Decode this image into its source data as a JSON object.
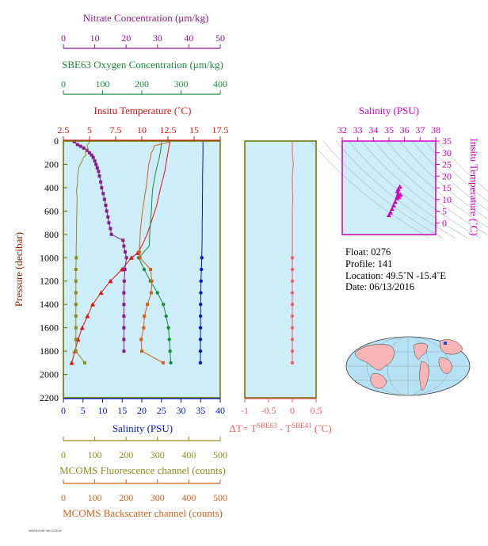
{
  "colors": {
    "panel_bg": "#cdeef8",
    "frame": "#6b6b00",
    "nitrate": "#8b1a8b",
    "oxygen": "#1a8a3a",
    "temperature": "#e01010",
    "salinity": "#0018c8",
    "fluorescence": "#8c8c1a",
    "backscatter": "#d0601a",
    "delta_t": "#f06060",
    "ts": "#d000c0"
  },
  "chart_data": [
    {
      "id": "profile",
      "type": "line",
      "ylabel": "Pressure (decibar)",
      "ylim": [
        0,
        2200
      ],
      "yticks": [
        0,
        200,
        400,
        600,
        800,
        1000,
        1200,
        1400,
        1600,
        1800,
        2000,
        2200
      ],
      "top_axes": [
        {
          "key": "nitrate",
          "title": "Nitrate Concentration (μm/kg)",
          "range": [
            0,
            50
          ],
          "ticks": [
            0,
            10,
            20,
            30,
            40,
            50
          ]
        },
        {
          "key": "oxygen",
          "title": "SBE63 Oxygen Concentration (μm/kg)",
          "range": [
            0,
            400
          ],
          "ticks": [
            0,
            100,
            200,
            300,
            400
          ]
        },
        {
          "key": "temperature",
          "title": "Insitu Temperature (˚C)",
          "range": [
            2.5,
            17.5
          ],
          "ticks": [
            2.5,
            5.0,
            7.5,
            10.0,
            12.5,
            15.0,
            17.5
          ]
        }
      ],
      "bottom_axes": [
        {
          "key": "salinity",
          "title": "Salinity (PSU)",
          "range": [
            0,
            40
          ],
          "ticks": [
            0,
            5,
            10,
            15,
            20,
            25,
            30,
            35,
            40
          ]
        },
        {
          "key": "fluorescence",
          "title": "MCOMS Fluorescence channel (counts)",
          "range": [
            0,
            500
          ],
          "ticks": [
            0,
            100,
            200,
            300,
            400,
            500
          ]
        },
        {
          "key": "backscatter",
          "title": "MCOMS Backscatter channel (counts)",
          "range": [
            0,
            500
          ],
          "ticks": [
            0,
            100,
            200,
            300,
            400,
            500
          ]
        }
      ],
      "series": [
        {
          "key": "temperature",
          "name": "Insitu Temperature",
          "marker": "triangle",
          "points": [
            [
              12.7,
              5
            ],
            [
              12.6,
              50
            ],
            [
              12.5,
              100
            ],
            [
              12.4,
              150
            ],
            [
              12.3,
              200
            ],
            [
              12.2,
              260
            ],
            [
              12.0,
              330
            ],
            [
              11.8,
              400
            ],
            [
              11.6,
              480
            ],
            [
              11.4,
              560
            ],
            [
              11.1,
              640
            ],
            [
              10.8,
              720
            ],
            [
              10.5,
              800
            ],
            [
              10.1,
              880
            ],
            [
              9.6,
              960
            ],
            [
              9.0,
              1000
            ],
            [
              8.1,
              1100
            ],
            [
              7.0,
              1200
            ],
            [
              6.1,
              1300
            ],
            [
              5.3,
              1400
            ],
            [
              4.8,
              1500
            ],
            [
              4.3,
              1600
            ],
            [
              3.9,
              1700
            ],
            [
              3.6,
              1800
            ],
            [
              3.3,
              1900
            ]
          ]
        },
        {
          "key": "salinity",
          "name": "Salinity",
          "marker": "circle",
          "points": [
            [
              35.6,
              5
            ],
            [
              35.6,
              100
            ],
            [
              35.55,
              200
            ],
            [
              35.5,
              300
            ],
            [
              35.5,
              400
            ],
            [
              35.45,
              500
            ],
            [
              35.45,
              600
            ],
            [
              35.4,
              700
            ],
            [
              35.4,
              800
            ],
            [
              35.35,
              900
            ],
            [
              35.3,
              1000
            ],
            [
              35.2,
              1100
            ],
            [
              35.1,
              1200
            ],
            [
              35.05,
              1300
            ],
            [
              35.0,
              1400
            ],
            [
              34.98,
              1500
            ],
            [
              34.96,
              1600
            ],
            [
              34.95,
              1700
            ],
            [
              34.94,
              1800
            ],
            [
              34.93,
              1900
            ]
          ]
        },
        {
          "key": "oxygen",
          "name": "SBE63 Oxygen Concentration",
          "marker": "circle",
          "points": [
            [
              250,
              5
            ],
            [
              249,
              50
            ],
            [
              247,
              100
            ],
            [
              244,
              150
            ],
            [
              240,
              200
            ],
            [
              236,
              260
            ],
            [
              232,
              330
            ],
            [
              228,
              400
            ],
            [
              226,
              480
            ],
            [
              225,
              560
            ],
            [
              224,
              620
            ],
            [
              222,
              700
            ],
            [
              220,
              800
            ],
            [
              219,
              900
            ],
            [
              192,
              1000
            ],
            [
              206,
              1100
            ],
            [
              222,
              1200
            ],
            [
              240,
              1300
            ],
            [
              255,
              1400
            ],
            [
              262,
              1500
            ],
            [
              268,
              1600
            ],
            [
              270,
              1700
            ],
            [
              272,
              1800
            ],
            [
              274,
              1900
            ]
          ]
        },
        {
          "key": "nitrate",
          "name": "Nitrate Concentration",
          "marker": "square",
          "points": [
            [
              3.5,
              5
            ],
            [
              4.5,
              30
            ],
            [
              5.5,
              45
            ],
            [
              6.5,
              60
            ],
            [
              7.5,
              80
            ],
            [
              8.3,
              100
            ],
            [
              9.0,
              120
            ],
            [
              9.5,
              140
            ],
            [
              10.0,
              170
            ],
            [
              10.4,
              200
            ],
            [
              10.8,
              230
            ],
            [
              11.2,
              260
            ],
            [
              11.5,
              300
            ],
            [
              11.9,
              350
            ],
            [
              12.2,
              400
            ],
            [
              12.7,
              450
            ],
            [
              13.1,
              500
            ],
            [
              13.5,
              550
            ],
            [
              13.8,
              600
            ],
            [
              14.2,
              650
            ],
            [
              14.5,
              700
            ],
            [
              15.0,
              750
            ],
            [
              15.3,
              800
            ],
            [
              19.0,
              850
            ],
            [
              19.3,
              900
            ],
            [
              19.7,
              950
            ],
            [
              20.1,
              1000
            ],
            [
              19.6,
              1100
            ],
            [
              19.4,
              1200
            ],
            [
              19.3,
              1300
            ],
            [
              19.3,
              1400
            ],
            [
              19.3,
              1500
            ],
            [
              19.3,
              1600
            ],
            [
              19.3,
              1700
            ],
            [
              19.3,
              1800
            ]
          ]
        },
        {
          "key": "fluorescence",
          "name": "MCOMS Fluorescence channel",
          "marker": "square",
          "points": [
            [
              85,
              5
            ],
            [
              80,
              20
            ],
            [
              75,
              40
            ],
            [
              78,
              60
            ],
            [
              72,
              80
            ],
            [
              70,
              100
            ],
            [
              72,
              120
            ],
            [
              64,
              140
            ],
            [
              60,
              170
            ],
            [
              54,
              200
            ],
            [
              50,
              220
            ],
            [
              48,
              260
            ],
            [
              45,
              300
            ],
            [
              46,
              350
            ],
            [
              42,
              420
            ],
            [
              44,
              500
            ],
            [
              43,
              600
            ],
            [
              42,
              700
            ],
            [
              42,
              800
            ],
            [
              41,
              900
            ],
            [
              41,
              1000
            ],
            [
              40,
              1100
            ],
            [
              40,
              1200
            ],
            [
              40,
              1300
            ],
            [
              40,
              1400
            ],
            [
              40,
              1500
            ],
            [
              40,
              1600
            ],
            [
              40,
              1700
            ],
            [
              40,
              1800
            ],
            [
              68,
              1900
            ]
          ]
        },
        {
          "key": "backscatter",
          "name": "MCOMS Backscatter channel",
          "marker": "square",
          "points": [
            [
              340,
              5
            ],
            [
              330,
              15
            ],
            [
              305,
              30
            ],
            [
              290,
              40
            ],
            [
              288,
              60
            ],
            [
              285,
              80
            ],
            [
              280,
              100
            ],
            [
              278,
              140
            ],
            [
              275,
              170
            ],
            [
              272,
              200
            ],
            [
              270,
              250
            ],
            [
              268,
              300
            ],
            [
              266,
              350
            ],
            [
              264,
              400
            ],
            [
              260,
              450
            ],
            [
              258,
              500
            ],
            [
              255,
              550
            ],
            [
              252,
              600
            ],
            [
              250,
              650
            ],
            [
              248,
              700
            ],
            [
              246,
              750
            ],
            [
              245,
              800
            ],
            [
              244,
              850
            ],
            [
              243,
              900
            ],
            [
              242,
              950
            ],
            [
              244,
              1000
            ],
            [
              278,
              1100
            ],
            [
              282,
              1200
            ],
            [
              280,
              1300
            ],
            [
              268,
              1400
            ],
            [
              258,
              1500
            ],
            [
              256,
              1600
            ],
            [
              248,
              1700
            ],
            [
              250,
              1800
            ],
            [
              318,
              1900
            ]
          ]
        }
      ]
    },
    {
      "id": "delta_t",
      "type": "line",
      "xlabel": "ΔT= T",
      "xlabel_sup1": "SBE63",
      "xlabel_mid": " - T",
      "xlabel_sup2": "SBE41",
      "xlabel_end": " (˚C)",
      "xlim": [
        -1.0,
        0.5
      ],
      "xticks": [
        -1.0,
        -0.5,
        0.0,
        0.5
      ],
      "ylim": [
        0,
        2200
      ],
      "series": [
        {
          "name": "ΔT",
          "points": [
            [
              0.0,
              5
            ],
            [
              0.0,
              100
            ],
            [
              0.02,
              200
            ],
            [
              0.0,
              300
            ],
            [
              0.0,
              400
            ],
            [
              0.01,
              500
            ],
            [
              0.0,
              600
            ],
            [
              0.0,
              700
            ],
            [
              0.0,
              800
            ],
            [
              0.0,
              900
            ],
            [
              0.0,
              1000
            ],
            [
              0.0,
              1100
            ],
            [
              0.0,
              1200
            ],
            [
              0.0,
              1300
            ],
            [
              0.0,
              1400
            ],
            [
              0.0,
              1500
            ],
            [
              0.0,
              1600
            ],
            [
              0.0,
              1700
            ],
            [
              0.0,
              1800
            ],
            [
              0.0,
              1900
            ]
          ]
        }
      ]
    },
    {
      "id": "ts",
      "type": "scatter",
      "xlabel": "Salinity (PSU)",
      "ylabel": "Insitu Temperature (˚C)",
      "xlim": [
        32,
        38
      ],
      "xticks": [
        32,
        33,
        34,
        35,
        36,
        37,
        38
      ],
      "ylim": [
        -5,
        35
      ],
      "yticks": [
        0,
        5,
        10,
        15,
        20,
        25,
        30,
        35
      ],
      "series": [
        {
          "name": "T-S",
          "points": [
            [
              35.0,
              3.3
            ],
            [
              35.1,
              4.5
            ],
            [
              35.2,
              6.0
            ],
            [
              35.3,
              7.5
            ],
            [
              35.4,
              9.0
            ],
            [
              35.5,
              10.5
            ],
            [
              35.55,
              11.5
            ],
            [
              35.6,
              12.5
            ],
            [
              35.55,
              13.5
            ],
            [
              35.6,
              14.5
            ],
            [
              35.7,
              15.5
            ],
            [
              35.65,
              11.0
            ],
            [
              35.75,
              12.0
            ]
          ]
        }
      ]
    }
  ],
  "float_info": {
    "float": "Float:  0276",
    "profile": "Profile:  141",
    "location": "Location:  49.5˚N  -15.4˚E",
    "date": "Date:  06/13/2016"
  },
  "footer": "MBARI/UW 06/13/2016"
}
